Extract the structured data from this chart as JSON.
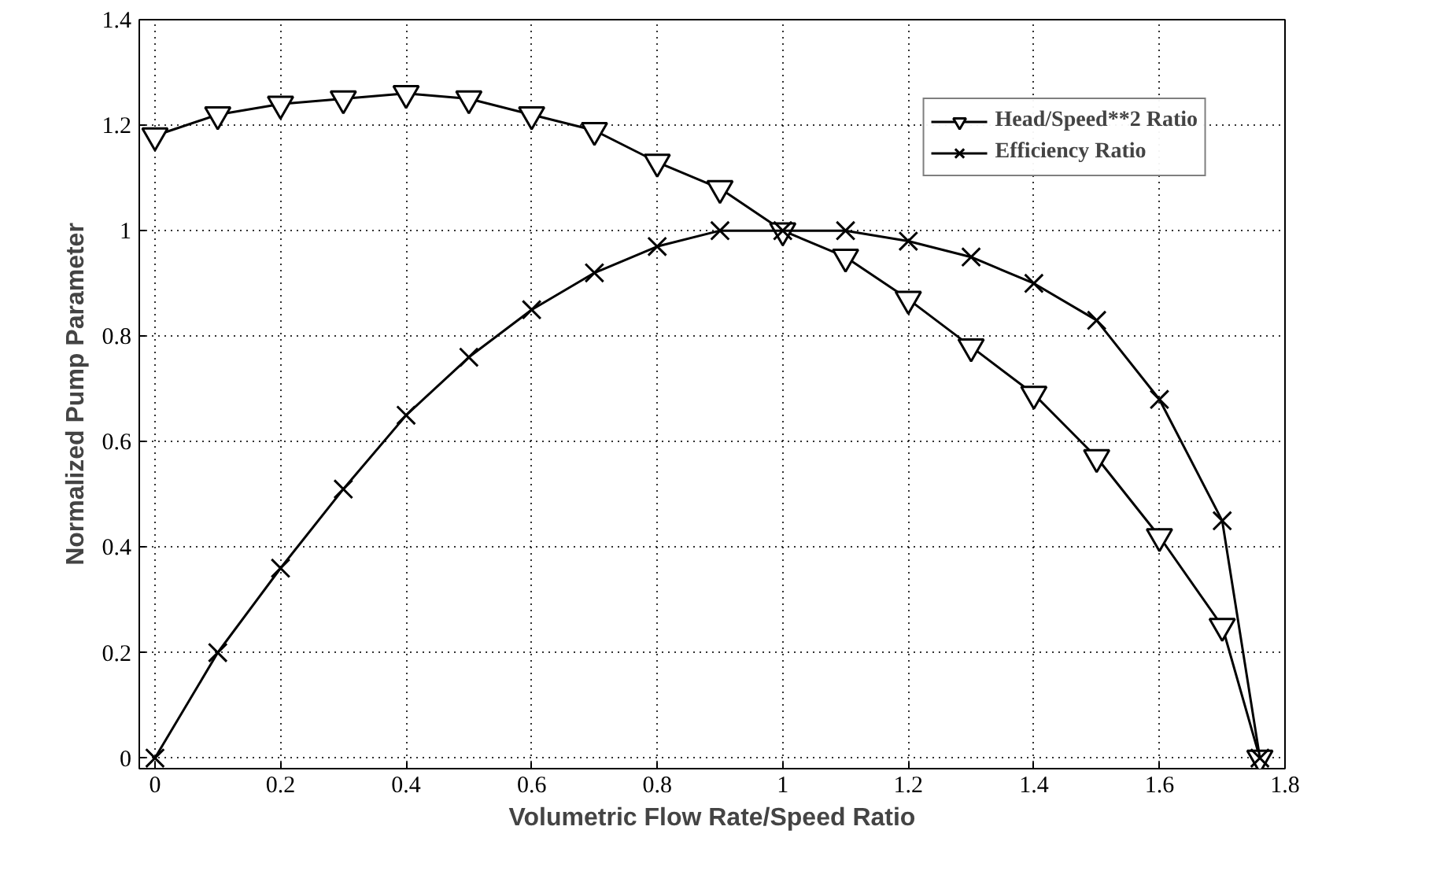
{
  "chart_data": {
    "type": "line",
    "xlabel": "Volumetric Flow Rate/Speed Ratio",
    "ylabel": "Normalized Pump Parameter",
    "x": [
      0,
      0.1,
      0.2,
      0.3,
      0.4,
      0.5,
      0.6,
      0.7,
      0.8,
      0.9,
      1.0,
      1.1,
      1.2,
      1.3,
      1.4,
      1.5,
      1.6,
      1.7,
      1.76
    ],
    "series": [
      {
        "name": "Head/Speed**2 Ratio",
        "color": "#000000",
        "marker": "triangle",
        "values": [
          1.18,
          1.22,
          1.24,
          1.25,
          1.26,
          1.25,
          1.22,
          1.19,
          1.13,
          1.08,
          1.0,
          0.95,
          0.87,
          0.78,
          0.69,
          0.57,
          0.42,
          0.25,
          0.0
        ]
      },
      {
        "name": "Efficiency Ratio",
        "color": "#000000",
        "marker": "cross",
        "values": [
          0.0,
          0.2,
          0.36,
          0.51,
          0.65,
          0.76,
          0.85,
          0.92,
          0.97,
          1.0,
          1.0,
          1.0,
          0.98,
          0.95,
          0.9,
          0.83,
          0.68,
          0.45,
          0.0
        ]
      }
    ],
    "xlim": [
      -0.025,
      1.8
    ],
    "ylim": [
      -0.02,
      1.4
    ],
    "xticks": [
      0,
      0.2,
      0.4,
      0.6,
      0.8,
      1,
      1.2,
      1.4,
      1.6,
      1.8
    ],
    "yticks": [
      0,
      0.2,
      0.4,
      0.6,
      0.8,
      1,
      1.2,
      1.4
    ],
    "grid": true,
    "legend": "top right",
    "line_style": "solid"
  }
}
